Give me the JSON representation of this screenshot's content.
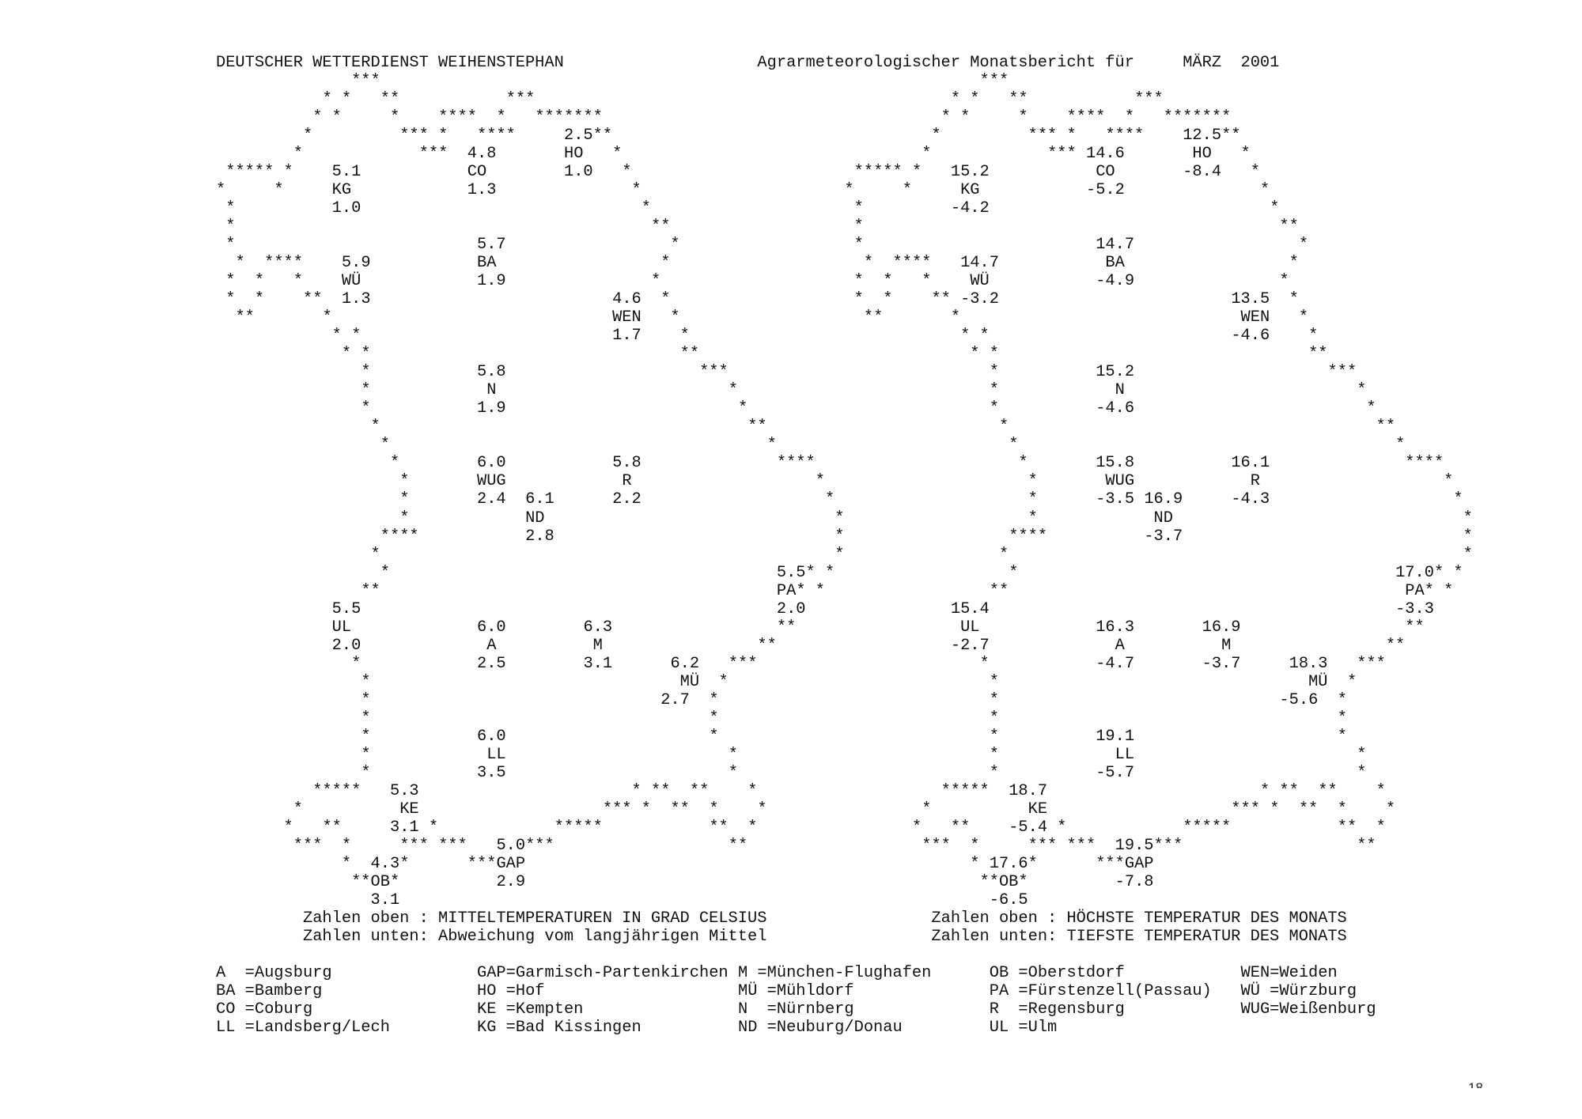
{
  "header": {
    "org": "DEUTSCHER WETTERDIENST WEIHENSTEPHAN",
    "title": "Agrarmeteorologischer Monatsbericht für",
    "month_year": "MÄRZ  2001"
  },
  "outline_lines": [
    "              ***",
    "           * *   **           ***",
    "          * *     *    ****  *   *******",
    "         *         *** *   ****        **",
    "        *            ***                 *",
    " ***** *                                  *",
    "*     *                                    *",
    " *                                          *",
    " *                                           **",
    " *                                             *",
    "  *  ****                                     *",
    " *  *   *                                    *",
    " *  *    **                                   *",
    "  **       *                                   *",
    "            * *                                 *",
    "             * *                                **",
    "               *                                  ***",
    "               *                                     *",
    "               *                                      *",
    "                *                                      **",
    "                 *                                       *",
    "                  *                                       ****",
    "                   *                                          *",
    "                   *                                           *",
    "                   *                                            *",
    "                 ****                                           *",
    "                *                                               *",
    "                 *                                           * *",
    "               **                                           * *",
    "",
    "                                                          **",
    "                                                        **",
    "              *                                      ***",
    "               *                                    *",
    "               *                                   *",
    "               *                                   *",
    "               *                                   *",
    "               *                                     *",
    "               *                                     *",
    "          *****                            * **  **    *",
    "        *                               *** *  **  *    *",
    "       *   **         *            *****           **  *",
    "        ***  *     *** ***      ***                  **",
    "             *     *      ***",
    "              **  *",
    ""
  ],
  "stations": [
    {
      "code": "KG",
      "mean": "5.1",
      "deviation": "1.0",
      "max": "15.2",
      "min": "-4.2"
    },
    {
      "code": "CO",
      "mean": "4.8",
      "deviation": "1.3",
      "max": "14.6",
      "min": "-5.2"
    },
    {
      "code": "HO",
      "mean": "2.5",
      "deviation": "1.0",
      "max": "12.5",
      "min": "-8.4"
    },
    {
      "code": "WÜ",
      "mean": "5.9",
      "deviation": "1.3",
      "max": "14.7",
      "min": "-3.2"
    },
    {
      "code": "BA",
      "mean": "5.7",
      "deviation": "1.9",
      "max": "14.7",
      "min": "-4.9"
    },
    {
      "code": "WEN",
      "mean": "4.6",
      "deviation": "1.7",
      "max": "13.5",
      "min": "-4.6"
    },
    {
      "code": "N",
      "mean": "5.8",
      "deviation": "1.9",
      "max": "15.2",
      "min": "-4.6"
    },
    {
      "code": "WUG",
      "mean": "6.0",
      "deviation": "2.4",
      "max": "15.8",
      "min": "-3.5"
    },
    {
      "code": "R",
      "mean": "5.8",
      "deviation": "2.2",
      "max": "16.1",
      "min": "-4.3"
    },
    {
      "code": "ND",
      "mean": "6.1",
      "deviation": "2.8",
      "max": "16.9",
      "min": "-3.7"
    },
    {
      "code": "PA",
      "mean": "5.5",
      "deviation": "2.0",
      "max": "17.0",
      "min": "-3.3"
    },
    {
      "code": "UL",
      "mean": "5.5",
      "deviation": "2.0",
      "max": "15.4",
      "min": "-2.7"
    },
    {
      "code": "A",
      "mean": "6.0",
      "deviation": "2.5",
      "max": "16.3",
      "min": "-4.7"
    },
    {
      "code": "M",
      "mean": "6.3",
      "deviation": "3.1",
      "max": "16.9",
      "min": "-3.7"
    },
    {
      "code": "MÜ",
      "mean": "6.2",
      "deviation": "2.7",
      "max": "18.3",
      "min": "-5.6"
    },
    {
      "code": "LL",
      "mean": "6.0",
      "deviation": "3.5",
      "max": "19.1",
      "min": "-5.7"
    },
    {
      "code": "KE",
      "mean": "5.3",
      "deviation": "3.1",
      "max": "18.7",
      "min": "-5.4"
    },
    {
      "code": "GAP",
      "mean": "5.0",
      "deviation": "2.9",
      "max": "19.5",
      "min": "-7.8"
    },
    {
      "code": "OB",
      "mean": "4.3",
      "deviation": "3.1",
      "max": "17.6",
      "min": "-6.5"
    }
  ],
  "captions": {
    "left_top": "Zahlen oben : MITTELTEMPERATUREN IN GRAD CELSIUS",
    "left_bottom": "Zahlen unten: Abweichung vom langjährigen Mittel",
    "right_top": "Zahlen oben : HÖCHSTE TEMPERATUR DES MONATS",
    "right_bottom": "Zahlen unten: TIEFSTE TEMPERATUR DES MONATS"
  },
  "legend": [
    [
      "A  =Augsburg",
      "BA =Bamberg",
      "CO =Coburg",
      "LL =Landsberg/Lech"
    ],
    [
      "GAP=Garmisch-Partenkirchen",
      "HO =Hof",
      "KE =Kempten",
      "KG =Bad Kissingen"
    ],
    [
      "M =München-Flughafen",
      "MÜ =Mühldorf",
      "N  =Nürnberg",
      "ND =Neuburg/Donau"
    ],
    [
      "OB =Oberstdorf",
      "PA =Fürstenzell(Passau)",
      "R  =Regensburg",
      "UL =Ulm"
    ],
    [
      "WEN=Weiden",
      "WÜ =Würzburg",
      "WUG=Weißenburg"
    ]
  ],
  "page_number": "18"
}
